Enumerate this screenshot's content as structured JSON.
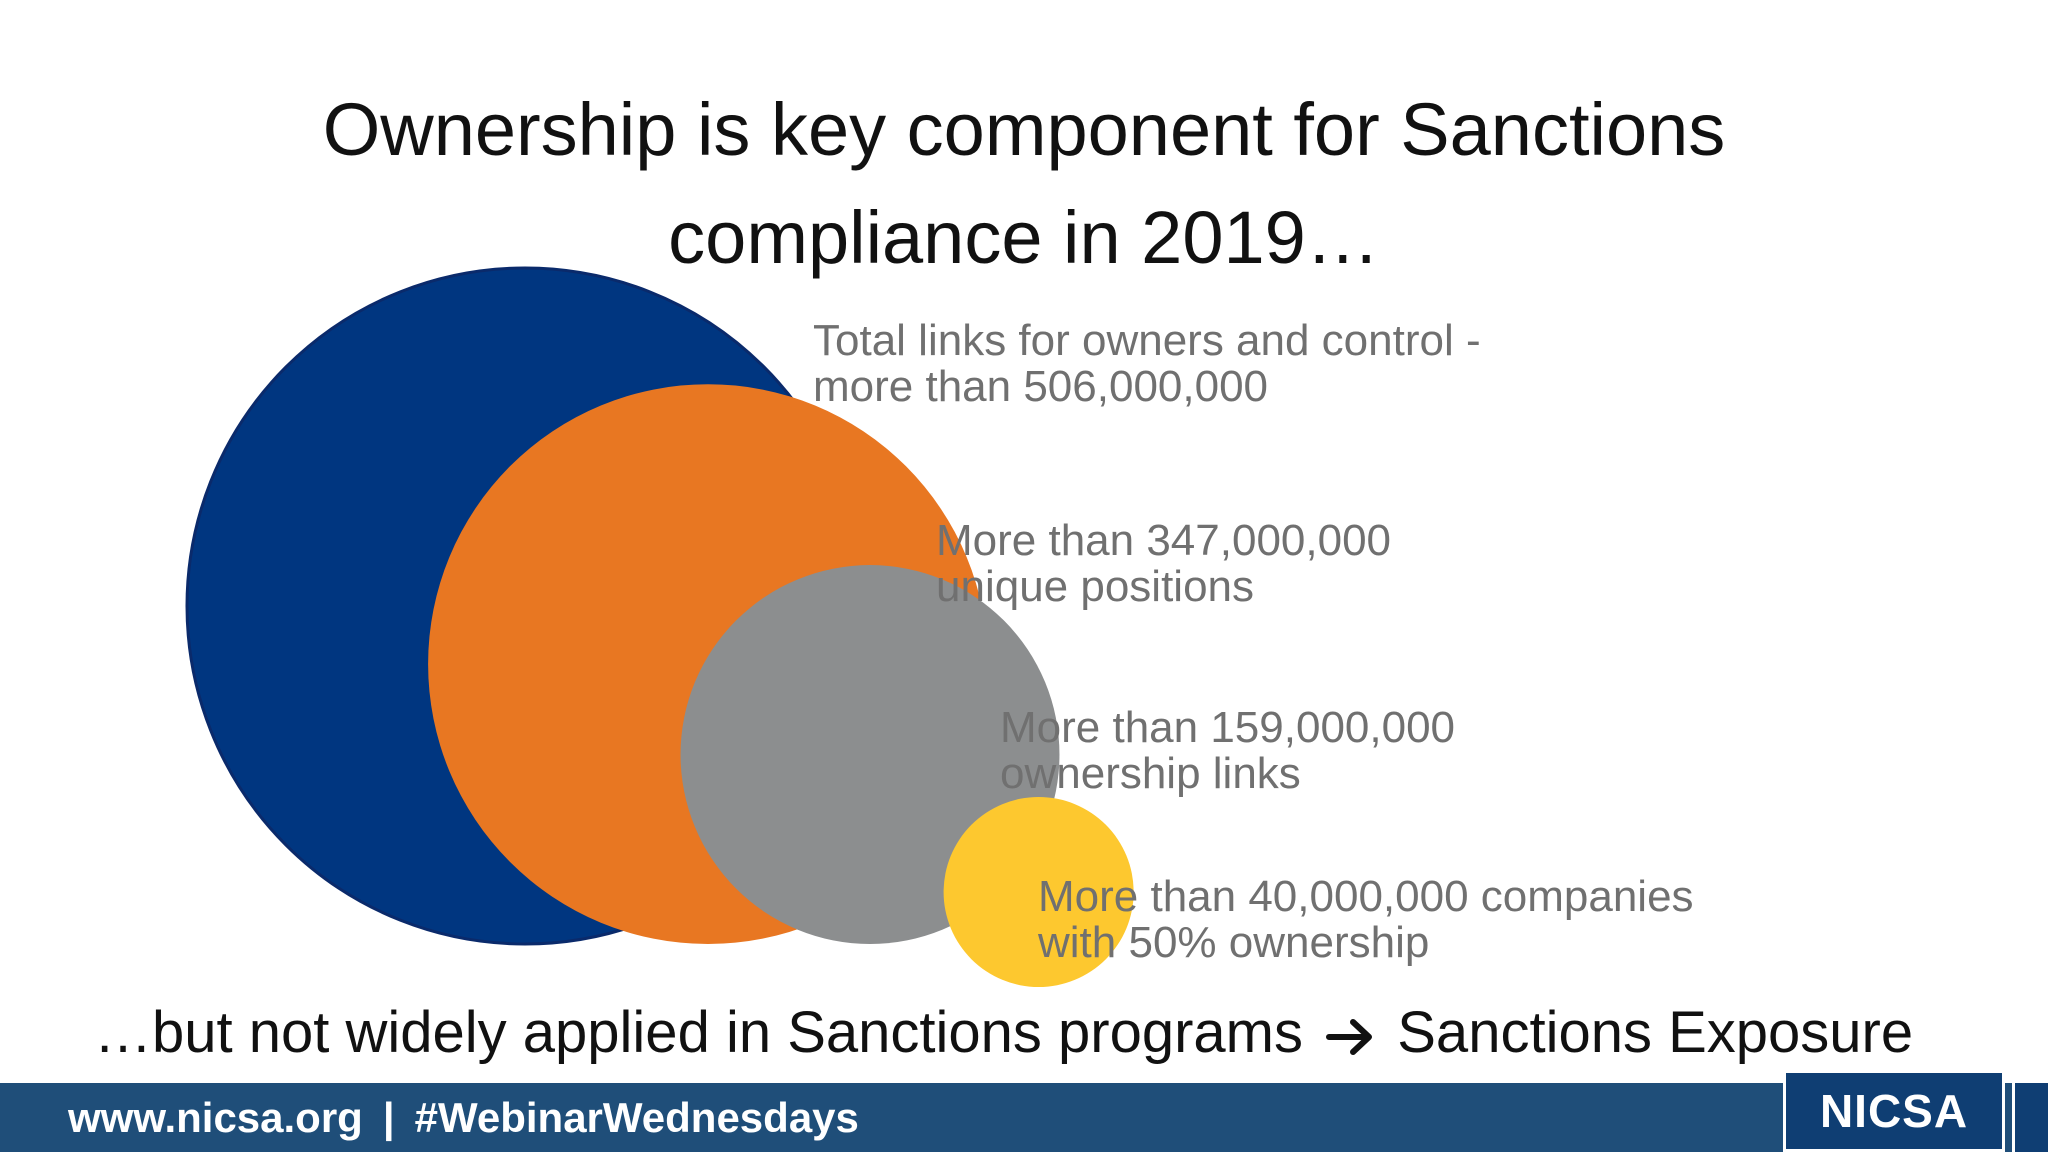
{
  "title": {
    "line1": "Ownership is key component for Sanctions",
    "line2": "compliance in 2019…"
  },
  "chart_data": {
    "type": "bubble",
    "title": "Ownership is key component for Sanctions compliance in 2019…",
    "series": [
      {
        "line1": "Total links for owners and control -",
        "line2": "more than 506,000,000",
        "value": 506000000,
        "color": "#003680"
      },
      {
        "line1": "More than 347,000,000",
        "line2": "unique positions",
        "value": 347000000,
        "color": "#e87722"
      },
      {
        "line1": "More than 159,000,000",
        "line2": "ownership links",
        "value": 159000000,
        "color": "#8c8e8f"
      },
      {
        "line1": "More than 40,000,000 companies",
        "line2": "with 50% ownership",
        "value": 40000000,
        "color": "#fdc82f"
      }
    ]
  },
  "bottom": {
    "left": "…but not widely applied in Sanctions programs",
    "right": "Sanctions Exposure",
    "arrow_icon": "arrow-right-icon"
  },
  "footer": {
    "website": "www.nicsa.org",
    "separator": "|",
    "hashtag": "#WebinarWednesdays",
    "logo": "NICSA"
  }
}
